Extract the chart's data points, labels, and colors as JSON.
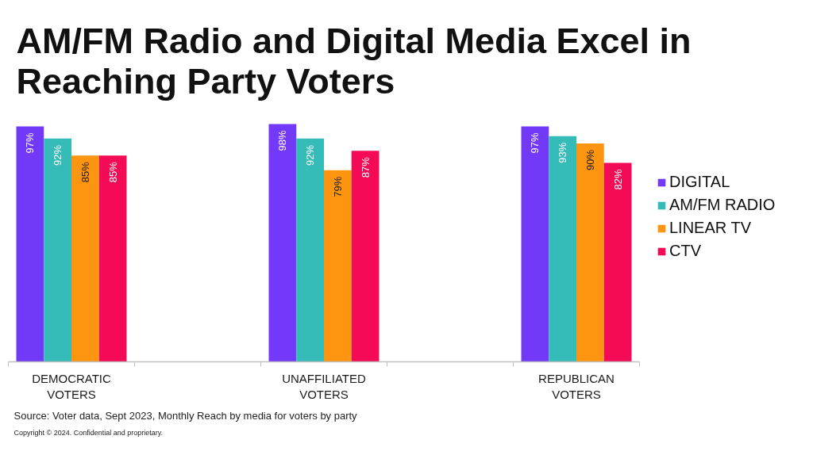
{
  "chart_data": {
    "type": "bar",
    "title": "AM/FM Radio and Digital Media Excel in Reaching Party Voters",
    "categories": [
      "DEMOCRATIC VOTERS",
      null,
      "UNAFFILIATED VOTERS",
      null,
      "REPUBLICAN VOTERS"
    ],
    "series": [
      {
        "name": "DIGITAL",
        "color": "#7339f9",
        "values": [
          97,
          null,
          98,
          null,
          97
        ],
        "value_labels": [
          "97%",
          null,
          "98%",
          null,
          "97%"
        ]
      },
      {
        "name": "AM/FM RADIO",
        "color": "#36bcb8",
        "values": [
          92,
          null,
          92,
          null,
          93
        ],
        "value_labels": [
          "92%",
          null,
          "92%",
          null,
          "93%"
        ]
      },
      {
        "name": "LINEAR TV",
        "color": "#fd9510",
        "values": [
          85,
          null,
          79,
          null,
          90
        ],
        "value_labels": [
          "85%",
          null,
          "79%",
          null,
          "90%"
        ]
      },
      {
        "name": "CTV",
        "color": "#f50a55",
        "values": [
          85,
          null,
          87,
          null,
          82
        ],
        "value_labels": [
          "85%",
          null,
          "87%",
          null,
          "82%"
        ]
      }
    ],
    "legend": "right",
    "grid": false,
    "annotations": [
      "Source: Voter data, Sept 2023, Monthly Reach by media for voters by party",
      "Copyright © 2024. Confidential and proprietary."
    ]
  }
}
